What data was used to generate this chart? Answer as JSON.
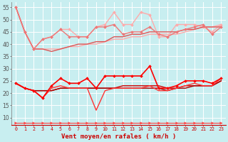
{
  "x": [
    0,
    1,
    2,
    3,
    4,
    5,
    6,
    7,
    8,
    9,
    10,
    11,
    12,
    13,
    14,
    15,
    16,
    17,
    18,
    19,
    20,
    21,
    22,
    23
  ],
  "bg_color": "#c8eef0",
  "xlabel": "Vent moyen/en rafales ( km/h )",
  "xlim": [
    -0.5,
    23.5
  ],
  "ylim": [
    7,
    57
  ],
  "yticks": [
    10,
    15,
    20,
    25,
    30,
    35,
    40,
    45,
    50,
    55
  ],
  "series": [
    {
      "values": [
        55,
        45,
        38,
        38,
        38,
        38,
        39,
        39,
        40,
        40,
        41,
        42,
        42,
        43,
        43,
        44,
        44,
        44,
        44,
        45,
        46,
        47,
        47,
        48
      ],
      "color": "#ffaaaa",
      "lw": 1.0,
      "marker": null,
      "zorder": 2
    },
    {
      "values": [
        55,
        45,
        38,
        42,
        43,
        46,
        46,
        43,
        43,
        47,
        48,
        53,
        48,
        48,
        53,
        52,
        43,
        43,
        48,
        48,
        48,
        47,
        45,
        48
      ],
      "color": "#ffaaaa",
      "lw": 1.0,
      "marker": "D",
      "ms": 2.0,
      "zorder": 2
    },
    {
      "values": [
        55,
        45,
        38,
        42,
        43,
        46,
        43,
        43,
        43,
        47,
        47,
        48,
        44,
        45,
        45,
        47,
        44,
        43,
        45,
        46,
        47,
        48,
        44,
        47
      ],
      "color": "#ee7777",
      "lw": 1.0,
      "marker": "D",
      "ms": 2.0,
      "zorder": 3
    },
    {
      "values": [
        55,
        45,
        38,
        38,
        37,
        38,
        39,
        40,
        40,
        41,
        41,
        43,
        43,
        44,
        44,
        45,
        45,
        45,
        45,
        46,
        46,
        47,
        47,
        47
      ],
      "color": "#dd5555",
      "lw": 1.0,
      "marker": null,
      "zorder": 2
    },
    {
      "values": [
        24,
        22,
        21,
        18,
        23,
        26,
        24,
        24,
        26,
        22,
        27,
        27,
        27,
        27,
        27,
        31,
        22,
        22,
        23,
        25,
        25,
        25,
        24,
        26
      ],
      "color": "#ff0000",
      "lw": 1.2,
      "marker": "D",
      "ms": 2.0,
      "zorder": 5
    },
    {
      "values": [
        24,
        22,
        21,
        21,
        21,
        22,
        22,
        22,
        22,
        22,
        22,
        22,
        23,
        23,
        23,
        23,
        23,
        22,
        22,
        23,
        23,
        23,
        23,
        25
      ],
      "color": "#cc0000",
      "lw": 1.0,
      "marker": null,
      "zorder": 3
    },
    {
      "values": [
        24,
        22,
        21,
        21,
        21,
        22,
        22,
        22,
        22,
        22,
        22,
        22,
        22,
        22,
        22,
        22,
        22,
        21,
        22,
        22,
        23,
        23,
        23,
        25
      ],
      "color": "#aa0000",
      "lw": 1.0,
      "marker": null,
      "zorder": 3
    },
    {
      "values": [
        24,
        22,
        21,
        18,
        22,
        23,
        22,
        22,
        22,
        13,
        21,
        22,
        22,
        22,
        22,
        23,
        21,
        21,
        22,
        23,
        24,
        23,
        23,
        26
      ],
      "color": "#ff3333",
      "lw": 1.0,
      "marker": null,
      "zorder": 3
    },
    {
      "values": [
        8,
        8,
        8,
        8,
        8,
        8,
        8,
        8,
        8,
        8,
        8,
        8,
        8,
        8,
        8,
        8,
        8,
        8,
        8,
        8,
        8,
        8,
        8,
        8
      ],
      "color": "#ff4444",
      "lw": 0.8,
      "marker": ">",
      "ms": 2.5,
      "zorder": 2
    }
  ]
}
